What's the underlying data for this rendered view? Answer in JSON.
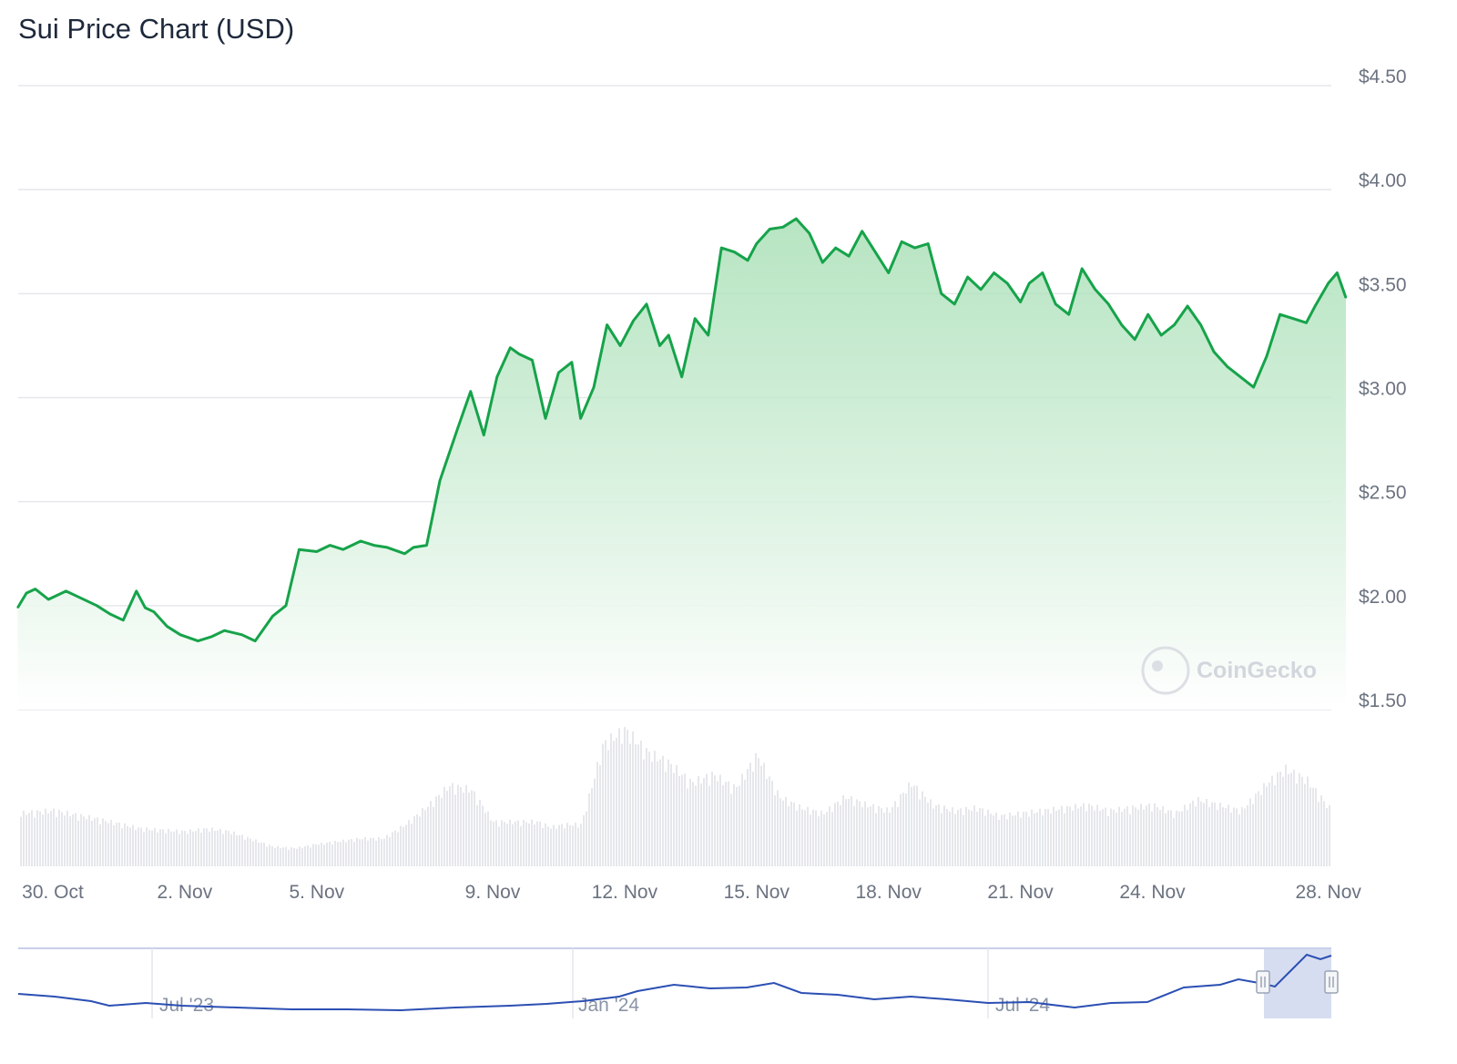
{
  "page": {
    "title": "Sui Price Chart (USD)"
  },
  "watermark": {
    "text": "CoinGecko",
    "icon": "gecko-icon"
  },
  "colors": {
    "line": "#16a34a",
    "fill_top": "#9fdcae",
    "grid": "#e5e7eb",
    "volume": "#e5e7eb",
    "navigator_line": "#2b4fb3",
    "navigator_mask": "#c9d1eb"
  },
  "chart_data": {
    "type": "line",
    "title": "Sui Price Chart (USD)",
    "ylabel": "",
    "xlabel": "",
    "ylim": [
      1.5,
      4.5
    ],
    "y_ticks": [
      "$4.50",
      "$4.00",
      "$3.50",
      "$3.00",
      "$2.50",
      "$2.00",
      "$1.50"
    ],
    "y_tick_values": [
      4.5,
      4.0,
      3.5,
      3.0,
      2.5,
      2.0,
      1.5
    ],
    "x_ticks": [
      {
        "label": "30. Oct",
        "day": 0
      },
      {
        "label": "2. Nov",
        "day": 3
      },
      {
        "label": "5. Nov",
        "day": 6
      },
      {
        "label": "9. Nov",
        "day": 10
      },
      {
        "label": "12. Nov",
        "day": 13
      },
      {
        "label": "15. Nov",
        "day": 16
      },
      {
        "label": "18. Nov",
        "day": 19
      },
      {
        "label": "21. Nov",
        "day": 22
      },
      {
        "label": "24. Nov",
        "day": 25
      },
      {
        "label": "28. Nov",
        "day": 29
      }
    ],
    "series": [
      {
        "name": "",
        "x_day": [
          -0.8,
          -0.6,
          -0.4,
          -0.1,
          0.3,
          0.6,
          1.0,
          1.3,
          1.6,
          1.9,
          2.1,
          2.3,
          2.6,
          2.9,
          3.3,
          3.6,
          3.9,
          4.3,
          4.6,
          5.0,
          5.3,
          5.6,
          6.0,
          6.3,
          6.6,
          7.0,
          7.3,
          7.6,
          8.0,
          8.2,
          8.5,
          8.8,
          9.2,
          9.5,
          9.8,
          10.1,
          10.4,
          10.6,
          10.9,
          11.2,
          11.5,
          11.8,
          12.0,
          12.3,
          12.6,
          12.9,
          13.2,
          13.5,
          13.8,
          14.0,
          14.3,
          14.6,
          14.9,
          15.2,
          15.5,
          15.8,
          16.0,
          16.3,
          16.6,
          16.9,
          17.2,
          17.5,
          17.8,
          18.1,
          18.4,
          18.7,
          19.0,
          19.3,
          19.6,
          19.9,
          20.2,
          20.5,
          20.8,
          21.1,
          21.4,
          21.7,
          22.0,
          22.2,
          22.5,
          22.8,
          23.1,
          23.4,
          23.7,
          24.0,
          24.3,
          24.6,
          24.9,
          25.2,
          25.5,
          25.8,
          26.1,
          26.4,
          26.7,
          27.0,
          27.3,
          27.6,
          27.9,
          28.2,
          28.5,
          28.7,
          29.0,
          29.2,
          29.4
        ],
        "values": [
          1.99,
          2.06,
          2.08,
          2.03,
          2.07,
          2.04,
          2.0,
          1.96,
          1.93,
          2.07,
          1.99,
          1.97,
          1.9,
          1.86,
          1.83,
          1.85,
          1.88,
          1.86,
          1.83,
          1.95,
          2.0,
          2.27,
          2.26,
          2.29,
          2.27,
          2.31,
          2.29,
          2.28,
          2.25,
          2.28,
          2.29,
          2.6,
          2.85,
          3.03,
          2.82,
          3.1,
          3.24,
          3.21,
          3.18,
          2.9,
          3.12,
          3.17,
          2.9,
          3.05,
          3.35,
          3.25,
          3.37,
          3.45,
          3.25,
          3.3,
          3.1,
          3.38,
          3.3,
          3.72,
          3.7,
          3.66,
          3.74,
          3.81,
          3.82,
          3.86,
          3.79,
          3.65,
          3.72,
          3.68,
          3.8,
          3.7,
          3.6,
          3.75,
          3.72,
          3.74,
          3.5,
          3.45,
          3.58,
          3.52,
          3.6,
          3.55,
          3.46,
          3.55,
          3.6,
          3.45,
          3.4,
          3.62,
          3.52,
          3.45,
          3.35,
          3.28,
          3.4,
          3.3,
          3.35,
          3.44,
          3.35,
          3.22,
          3.15,
          3.1,
          3.05,
          3.2,
          3.4,
          3.38,
          3.36,
          3.44,
          3.55,
          3.6,
          3.48
        ]
      }
    ],
    "volume": {
      "x_day": [
        -0.8,
        0.0,
        1.0,
        2.0,
        3.0,
        3.5,
        4.0,
        5.0,
        5.5,
        6.0,
        7.0,
        7.5,
        8.0,
        8.5,
        9.0,
        9.5,
        10.0,
        10.5,
        11.0,
        11.3,
        11.6,
        12.0,
        12.5,
        13.0,
        13.5,
        14.0,
        14.5,
        15.0,
        15.5,
        16.0,
        16.5,
        17.0,
        17.5,
        18.0,
        18.5,
        19.0,
        19.5,
        20.0,
        20.5,
        21.0,
        21.5,
        22.0,
        22.5,
        23.0,
        23.5,
        24.0,
        24.5,
        25.0,
        25.5,
        26.0,
        26.5,
        27.0,
        27.3,
        27.6,
        28.0,
        28.5,
        29.0,
        29.4
      ],
      "relative": [
        0.38,
        0.4,
        0.34,
        0.27,
        0.25,
        0.27,
        0.25,
        0.14,
        0.13,
        0.16,
        0.2,
        0.2,
        0.3,
        0.43,
        0.58,
        0.55,
        0.32,
        0.32,
        0.32,
        0.28,
        0.3,
        0.3,
        0.88,
        0.98,
        0.82,
        0.74,
        0.6,
        0.66,
        0.56,
        0.8,
        0.5,
        0.42,
        0.38,
        0.5,
        0.44,
        0.4,
        0.6,
        0.44,
        0.4,
        0.42,
        0.36,
        0.38,
        0.4,
        0.42,
        0.44,
        0.4,
        0.42,
        0.44,
        0.38,
        0.48,
        0.44,
        0.4,
        0.5,
        0.6,
        0.7,
        0.62,
        0.42,
        0.38
      ]
    }
  },
  "navigator": {
    "ticks": [
      "Jul '23",
      "Jan '24",
      "Jul '24"
    ],
    "range_handles": [
      "range-start-handle",
      "range-end-handle"
    ]
  }
}
